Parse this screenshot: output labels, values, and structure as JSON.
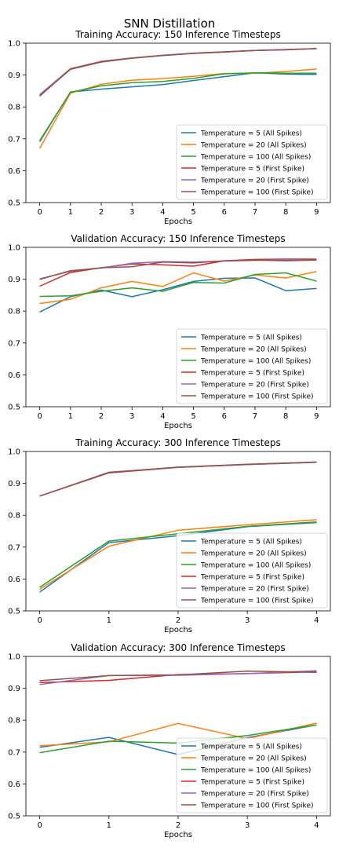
{
  "figure": {
    "suptitle": "SNN Distillation"
  },
  "series_colors": [
    "#1f77b4",
    "#ff7f0e",
    "#2ca02c",
    "#d62728",
    "#9467bd",
    "#8c564b"
  ],
  "chart_data": [
    {
      "type": "line",
      "title": "Training Accuracy: 150 Inference Timesteps",
      "xlabel": "Epochs",
      "ylabel": "",
      "x": [
        0,
        1,
        2,
        3,
        4,
        5,
        6,
        7,
        8,
        9
      ],
      "xlim": [
        -0.45,
        9.45
      ],
      "ylim": [
        0.5,
        1.0
      ],
      "yticks": [
        "0.5",
        "0.6",
        "0.7",
        "0.8",
        "0.9",
        "1.0"
      ],
      "xticks": [
        "0",
        "1",
        "2",
        "3",
        "4",
        "5",
        "6",
        "7",
        "8",
        "9"
      ],
      "grid": false,
      "legend_loc": "lower-right",
      "series": [
        {
          "name": "Temperature = 5 (All Spikes)",
          "values": [
            0.691,
            0.847,
            0.856,
            0.863,
            0.87,
            0.883,
            0.895,
            0.907,
            0.903,
            0.902
          ]
        },
        {
          "name": "Temperature = 20 (All Spikes)",
          "values": [
            0.67,
            0.843,
            0.871,
            0.884,
            0.889,
            0.896,
            0.905,
            0.906,
            0.911,
            0.919
          ]
        },
        {
          "name": "Temperature = 100 (All Spikes)",
          "values": [
            0.694,
            0.846,
            0.866,
            0.876,
            0.88,
            0.89,
            0.904,
            0.907,
            0.906,
            0.906
          ]
        },
        {
          "name": "Temperature = 5 (First Spike)",
          "values": [
            0.836,
            0.918,
            0.941,
            0.953,
            0.962,
            0.968,
            0.972,
            0.977,
            0.98,
            0.983
          ]
        },
        {
          "name": "Temperature = 20 (First Spike)",
          "values": [
            0.839,
            0.92,
            0.943,
            0.954,
            0.962,
            0.969,
            0.973,
            0.977,
            0.98,
            0.983
          ]
        },
        {
          "name": "Temperature = 100 (First Spike)",
          "values": [
            0.834,
            0.919,
            0.942,
            0.953,
            0.961,
            0.968,
            0.973,
            0.977,
            0.979,
            0.983
          ]
        }
      ]
    },
    {
      "type": "line",
      "title": "Validation Accuracy: 150 Inference Timesteps",
      "xlabel": "Epochs",
      "ylabel": "",
      "x": [
        0,
        1,
        2,
        3,
        4,
        5,
        6,
        7,
        8,
        9
      ],
      "xlim": [
        -0.45,
        9.45
      ],
      "ylim": [
        0.5,
        1.0
      ],
      "yticks": [
        "0.5",
        "0.6",
        "0.7",
        "0.8",
        "0.9",
        "1.0"
      ],
      "xticks": [
        "0",
        "1",
        "2",
        "3",
        "4",
        "5",
        "6",
        "7",
        "8",
        "9"
      ],
      "grid": false,
      "legend_loc": "lower-right",
      "series": [
        {
          "name": "Temperature = 5 (All Spikes)",
          "values": [
            0.797,
            0.845,
            0.866,
            0.845,
            0.867,
            0.893,
            0.903,
            0.904,
            0.864,
            0.871
          ]
        },
        {
          "name": "Temperature = 20 (All Spikes)",
          "values": [
            0.824,
            0.837,
            0.873,
            0.893,
            0.877,
            0.92,
            0.894,
            0.913,
            0.904,
            0.924
          ]
        },
        {
          "name": "Temperature = 100 (All Spikes)",
          "values": [
            0.846,
            0.848,
            0.862,
            0.873,
            0.862,
            0.89,
            0.888,
            0.915,
            0.92,
            0.894
          ]
        },
        {
          "name": "Temperature = 5 (First Spike)",
          "values": [
            0.878,
            0.921,
            0.936,
            0.948,
            0.945,
            0.941,
            0.958,
            0.962,
            0.963,
            0.963
          ]
        },
        {
          "name": "Temperature = 20 (First Spike)",
          "values": [
            0.899,
            0.927,
            0.935,
            0.95,
            0.955,
            0.954,
            0.957,
            0.959,
            0.961,
            0.96
          ]
        },
        {
          "name": "Temperature = 100 (First Spike)",
          "values": [
            0.901,
            0.925,
            0.936,
            0.939,
            0.954,
            0.951,
            0.958,
            0.96,
            0.958,
            0.96
          ]
        }
      ]
    },
    {
      "type": "line",
      "title": "Training Accuracy: 300 Inference Timesteps",
      "xlabel": "Epochs",
      "ylabel": "",
      "x": [
        0,
        1,
        2,
        3,
        4
      ],
      "xlim": [
        -0.2,
        4.2
      ],
      "ylim": [
        0.5,
        1.0
      ],
      "yticks": [
        "0.5",
        "0.6",
        "0.7",
        "0.8",
        "0.9",
        "1.0"
      ],
      "xticks": [
        "0",
        "1",
        "2",
        "3",
        "4"
      ],
      "grid": false,
      "legend_loc": "lower-right",
      "series": [
        {
          "name": "Temperature = 5 (All Spikes)",
          "values": [
            0.559,
            0.714,
            0.736,
            0.764,
            0.777
          ]
        },
        {
          "name": "Temperature = 20 (All Spikes)",
          "values": [
            0.568,
            0.703,
            0.753,
            0.77,
            0.786
          ]
        },
        {
          "name": "Temperature = 100 (All Spikes)",
          "values": [
            0.574,
            0.719,
            0.742,
            0.765,
            0.779
          ]
        },
        {
          "name": "Temperature = 5 (First Spike)",
          "values": [
            0.86,
            0.933,
            0.95,
            0.959,
            0.966
          ]
        },
        {
          "name": "Temperature = 20 (First Spike)",
          "values": [
            0.86,
            0.935,
            0.95,
            0.959,
            0.966
          ]
        },
        {
          "name": "Temperature = 100 (First Spike)",
          "values": [
            0.86,
            0.934,
            0.951,
            0.96,
            0.967
          ]
        }
      ]
    },
    {
      "type": "line",
      "title": "Validation Accuracy: 300 Inference Timesteps",
      "xlabel": "Epochs",
      "ylabel": "",
      "x": [
        0,
        1,
        2,
        3,
        4
      ],
      "xlim": [
        -0.2,
        4.2
      ],
      "ylim": [
        0.5,
        1.0
      ],
      "yticks": [
        "0.5",
        "0.6",
        "0.7",
        "0.8",
        "0.9",
        "1.0"
      ],
      "xticks": [
        "0",
        "1",
        "2",
        "3",
        "4"
      ],
      "grid": false,
      "legend_loc": "lower-right",
      "series": [
        {
          "name": "Temperature = 5 (All Spikes)",
          "values": [
            0.715,
            0.746,
            0.692,
            0.745,
            0.785
          ]
        },
        {
          "name": "Temperature = 20 (All Spikes)",
          "values": [
            0.72,
            0.732,
            0.79,
            0.742,
            0.791
          ]
        },
        {
          "name": "Temperature = 100 (All Spikes)",
          "values": [
            0.698,
            0.734,
            0.728,
            0.752,
            0.785
          ]
        },
        {
          "name": "Temperature = 5 (First Spike)",
          "values": [
            0.918,
            0.925,
            0.943,
            0.946,
            0.952
          ]
        },
        {
          "name": "Temperature = 20 (First Spike)",
          "values": [
            0.912,
            0.94,
            0.941,
            0.946,
            0.955
          ]
        },
        {
          "name": "Temperature = 100 (First Spike)",
          "values": [
            0.924,
            0.94,
            0.942,
            0.954,
            0.95
          ]
        }
      ]
    }
  ]
}
